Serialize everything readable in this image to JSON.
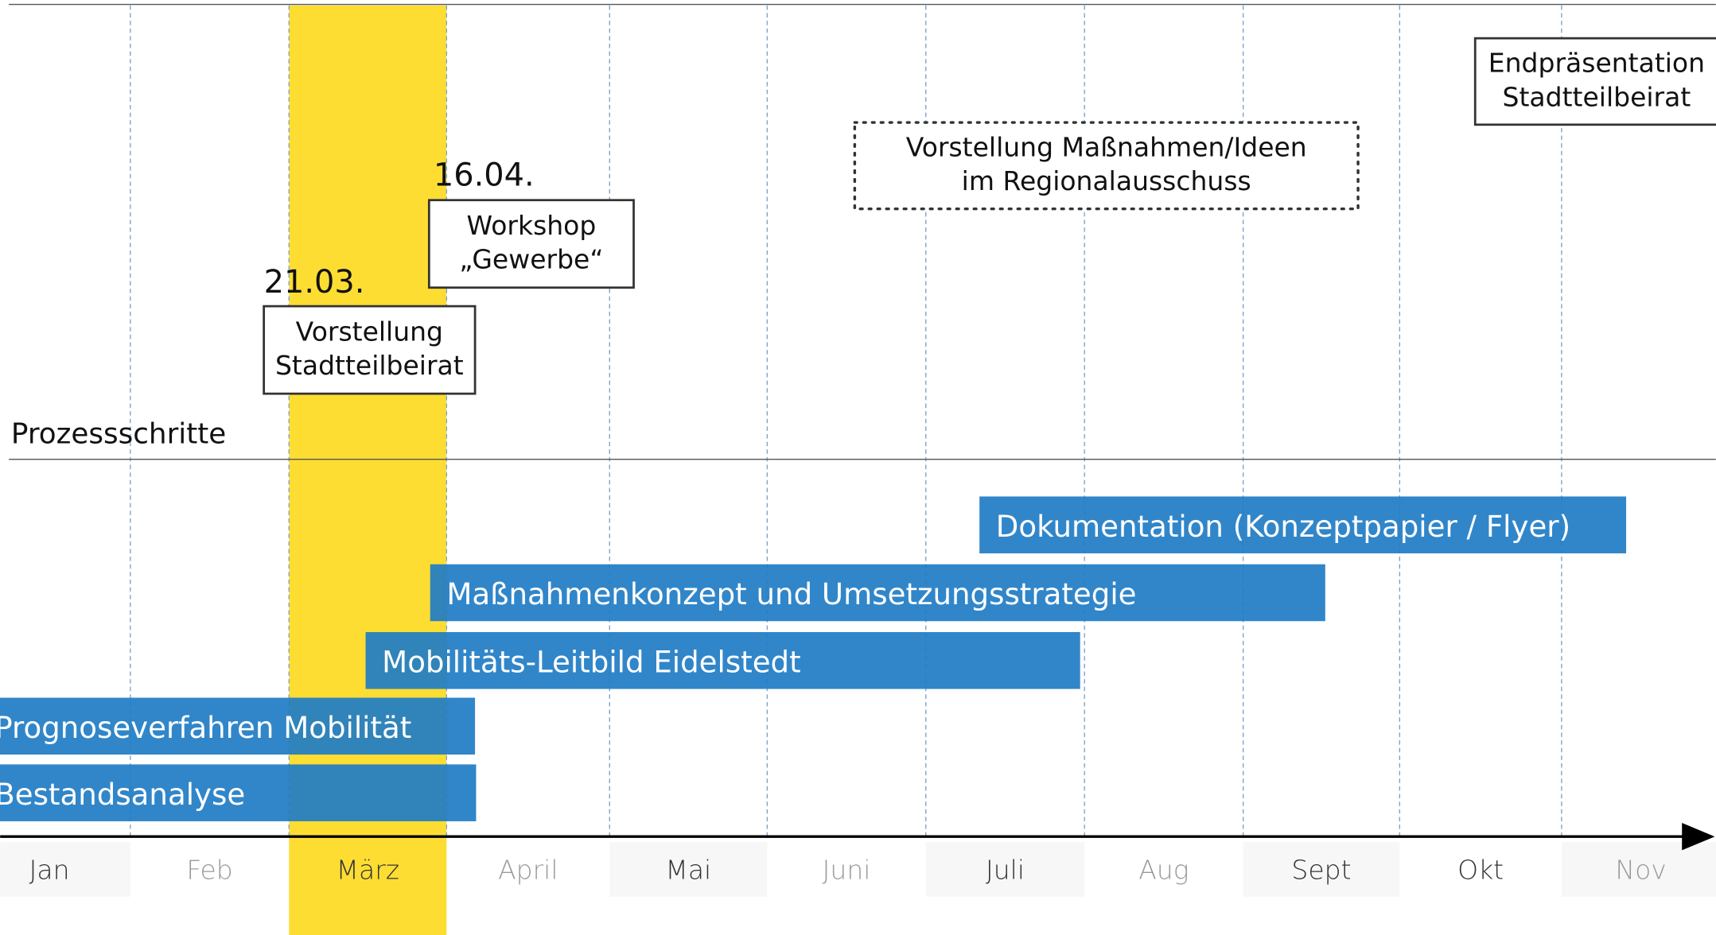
{
  "section_label": "Prozessschritte",
  "months": [
    "Jan",
    "Feb",
    "März",
    "April",
    "Mai",
    "Juni",
    "Juli",
    "Aug",
    "Sept",
    "Okt",
    "Nov"
  ],
  "milestones": [
    {
      "date": "21.03.",
      "lines": [
        "Vorstellung",
        "Stadtteilbeirat"
      ]
    },
    {
      "date": "16.04.",
      "lines": [
        "Workshop",
        "„Gewerbe“"
      ]
    },
    {
      "lines": [
        "Vorstellung Maßnahmen/Ideen",
        "im Regionalausschuss"
      ]
    },
    {
      "lines": [
        "Endpräsentation",
        "Stadtteilbeirat"
      ]
    }
  ],
  "tasks": [
    "Dokumentation (Konzeptpapier / Flyer)",
    "Maßnahmenkonzept und Umsetzungsstrategie",
    "Mobilitäts-Leitbild Eidelstedt",
    "Prognoseverfahren Mobilität",
    "Bestandsanalyse"
  ]
}
